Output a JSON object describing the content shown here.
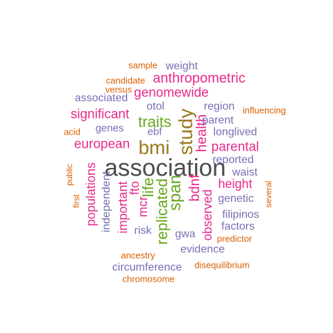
{
  "palette": {
    "gray": "#4d4d4d",
    "olive": "#9a7a1e",
    "green": "#66a61e",
    "magenta": "#e7298a",
    "purple": "#7570b3",
    "orange": "#d95f02"
  },
  "words": [
    {
      "text": "association",
      "color": "gray",
      "size": 35,
      "rot": 0
    },
    {
      "text": "bmi",
      "color": "olive",
      "size": 28,
      "rot": 0
    },
    {
      "text": "study",
      "color": "olive",
      "size": 28,
      "rot": 1
    },
    {
      "text": "traits",
      "color": "green",
      "size": 22,
      "rot": 0
    },
    {
      "text": "life",
      "color": "green",
      "size": 22,
      "rot": 1
    },
    {
      "text": "span",
      "color": "green",
      "size": 24,
      "rot": 1
    },
    {
      "text": "replicated",
      "color": "green",
      "size": 22,
      "rot": 1
    },
    {
      "text": "health",
      "color": "magenta",
      "size": 20,
      "rot": 1
    },
    {
      "text": "bdnf",
      "color": "magenta",
      "size": 20,
      "rot": 1
    },
    {
      "text": "anthropometric",
      "color": "magenta",
      "size": 20,
      "rot": 0
    },
    {
      "text": "genomewide",
      "color": "magenta",
      "size": 19,
      "rot": 0
    },
    {
      "text": "significant",
      "color": "magenta",
      "size": 19,
      "rot": 0
    },
    {
      "text": "european",
      "color": "magenta",
      "size": 19,
      "rot": 0
    },
    {
      "text": "parental",
      "color": "magenta",
      "size": 19,
      "rot": 0
    },
    {
      "text": "height",
      "color": "magenta",
      "size": 18,
      "rot": 0
    },
    {
      "text": "populations",
      "color": "magenta",
      "size": 18,
      "rot": 1
    },
    {
      "text": "important",
      "color": "magenta",
      "size": 18,
      "rot": 1
    },
    {
      "text": "mcr",
      "color": "magenta",
      "size": 18,
      "rot": 1
    },
    {
      "text": "fto",
      "color": "magenta",
      "size": 18,
      "rot": 1
    },
    {
      "text": "observed",
      "color": "magenta",
      "size": 18,
      "rot": 1
    },
    {
      "text": "weight",
      "color": "purple",
      "size": 16,
      "rot": 0
    },
    {
      "text": "associated",
      "color": "purple",
      "size": 16,
      "rot": 0
    },
    {
      "text": "otol",
      "color": "purple",
      "size": 16,
      "rot": 0
    },
    {
      "text": "region",
      "color": "purple",
      "size": 16,
      "rot": 0
    },
    {
      "text": "genes",
      "color": "purple",
      "size": 15,
      "rot": 0
    },
    {
      "text": "ebf",
      "color": "purple",
      "size": 15,
      "rot": 0
    },
    {
      "text": "parent",
      "color": "purple",
      "size": 16,
      "rot": 0
    },
    {
      "text": "longlived",
      "color": "purple",
      "size": 16,
      "rot": 0
    },
    {
      "text": "reported",
      "color": "purple",
      "size": 16,
      "rot": 0
    },
    {
      "text": "waist",
      "color": "purple",
      "size": 16,
      "rot": 0
    },
    {
      "text": "genetic",
      "color": "purple",
      "size": 16,
      "rot": 0
    },
    {
      "text": "filipinos",
      "color": "purple",
      "size": 16,
      "rot": 0
    },
    {
      "text": "factors",
      "color": "purple",
      "size": 16,
      "rot": 0
    },
    {
      "text": "risk",
      "color": "purple",
      "size": 16,
      "rot": 0
    },
    {
      "text": "gwa",
      "color": "purple",
      "size": 16,
      "rot": 0
    },
    {
      "text": "evidence",
      "color": "purple",
      "size": 16,
      "rot": 0
    },
    {
      "text": "circumference",
      "color": "purple",
      "size": 16,
      "rot": 0
    },
    {
      "text": "independent",
      "color": "purple",
      "size": 16,
      "rot": 1
    },
    {
      "text": "sample",
      "color": "orange",
      "size": 13,
      "rot": 0
    },
    {
      "text": "candidate",
      "color": "orange",
      "size": 13,
      "rot": 0
    },
    {
      "text": "versus",
      "color": "orange",
      "size": 13,
      "rot": 0
    },
    {
      "text": "influencing",
      "color": "orange",
      "size": 13,
      "rot": 0
    },
    {
      "text": "acid",
      "color": "orange",
      "size": 13,
      "rot": 0
    },
    {
      "text": "public",
      "color": "orange",
      "size": 12,
      "rot": 1
    },
    {
      "text": "first",
      "color": "orange",
      "size": 12,
      "rot": 1
    },
    {
      "text": "several",
      "color": "orange",
      "size": 12,
      "rot": 1
    },
    {
      "text": "predictor",
      "color": "orange",
      "size": 13,
      "rot": 0
    },
    {
      "text": "ancestry",
      "color": "orange",
      "size": 13,
      "rot": 0
    },
    {
      "text": "disequilibrium",
      "color": "orange",
      "size": 13,
      "rot": 0
    },
    {
      "text": "chromosome",
      "color": "orange",
      "size": 13,
      "rot": 0
    }
  ]
}
